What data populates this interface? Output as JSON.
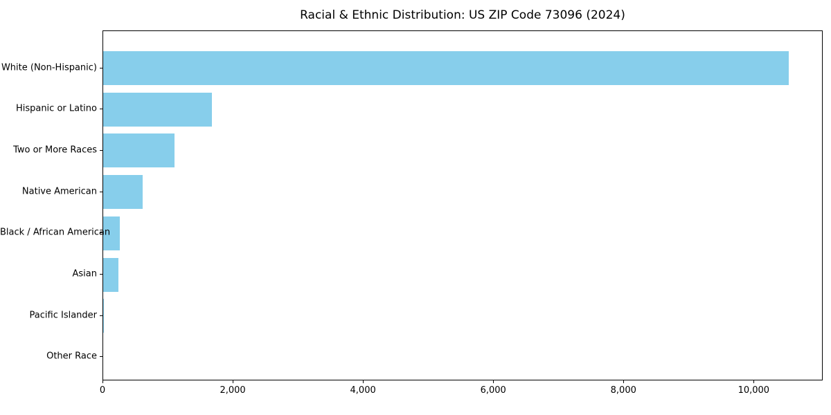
{
  "title": "Racial & Ethnic Distribution: US ZIP Code 73096 (2024)",
  "chart_data": {
    "type": "bar",
    "orientation": "horizontal",
    "title": "Racial & Ethnic Distribution: US ZIP Code 73096 (2024)",
    "categories": [
      "White (Non-Hispanic)",
      "Hispanic or Latino",
      "Two or More Races",
      "Native American",
      "Black / African American",
      "Asian",
      "Pacific Islander",
      "Other Race"
    ],
    "values": [
      10530,
      1670,
      1100,
      610,
      255,
      235,
      5,
      0
    ],
    "xlabel": "",
    "ylabel": "",
    "xlim": [
      0,
      11060
    ],
    "xticks": [
      0,
      2000,
      4000,
      6000,
      8000,
      10000
    ],
    "xtick_labels": [
      "0",
      "2,000",
      "4,000",
      "6,000",
      "8,000",
      "10,000"
    ],
    "bar_color": "#87CEEB",
    "axis_color": "#000000",
    "text_color": "#000000",
    "background_color": "#FFFFFF",
    "grid": false,
    "legend": null
  }
}
